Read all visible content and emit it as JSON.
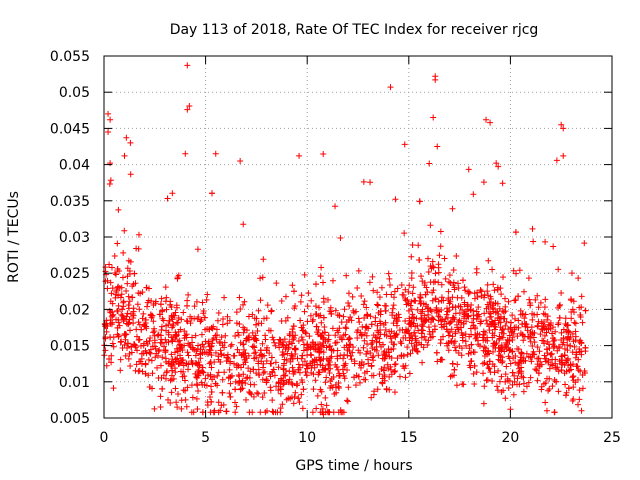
{
  "chart_data": {
    "type": "scatter",
    "title": "Day 113 of 2018, Rate Of TEC Index for receiver rjcg",
    "xlabel": "GPS time / hours",
    "ylabel": "ROTI / TECUs",
    "xlim": [
      0,
      25
    ],
    "ylim": [
      0.005,
      0.055
    ],
    "x_ticks": [
      {
        "value": 0,
        "label": "0"
      },
      {
        "value": 5,
        "label": "5"
      },
      {
        "value": 10,
        "label": "10"
      },
      {
        "value": 15,
        "label": "15"
      },
      {
        "value": 20,
        "label": "20"
      },
      {
        "value": 25,
        "label": "25"
      }
    ],
    "y_ticks": [
      {
        "value": 0.005,
        "label": "0.005"
      },
      {
        "value": 0.01,
        "label": "0.01"
      },
      {
        "value": 0.015,
        "label": "0.015"
      },
      {
        "value": 0.02,
        "label": "0.02"
      },
      {
        "value": 0.025,
        "label": "0.025"
      },
      {
        "value": 0.03,
        "label": "0.03"
      },
      {
        "value": 0.035,
        "label": "0.035"
      },
      {
        "value": 0.04,
        "label": "0.04"
      },
      {
        "value": 0.045,
        "label": "0.045"
      },
      {
        "value": 0.05,
        "label": "0.05"
      },
      {
        "value": 0.055,
        "label": "0.055"
      }
    ],
    "grid": true,
    "grid_style": "dotted",
    "marker": "plus",
    "series": [
      {
        "name": "ROTI",
        "color": "#ff0000",
        "x_range": [
          0,
          23.7
        ],
        "points_estimated_count": 2400,
        "trend": [
          {
            "hour": 0.0,
            "median": 0.019
          },
          {
            "hour": 1.0,
            "median": 0.02
          },
          {
            "hour": 2.0,
            "median": 0.017
          },
          {
            "hour": 3.0,
            "median": 0.015
          },
          {
            "hour": 4.0,
            "median": 0.0135
          },
          {
            "hour": 5.0,
            "median": 0.0135
          },
          {
            "hour": 6.0,
            "median": 0.013
          },
          {
            "hour": 7.0,
            "median": 0.0135
          },
          {
            "hour": 8.0,
            "median": 0.012
          },
          {
            "hour": 9.0,
            "median": 0.0125
          },
          {
            "hour": 10.0,
            "median": 0.0155
          },
          {
            "hour": 11.0,
            "median": 0.013
          },
          {
            "hour": 12.0,
            "median": 0.0145
          },
          {
            "hour": 13.0,
            "median": 0.0155
          },
          {
            "hour": 14.0,
            "median": 0.016
          },
          {
            "hour": 15.0,
            "median": 0.018
          },
          {
            "hour": 16.0,
            "median": 0.0205
          },
          {
            "hour": 17.0,
            "median": 0.019
          },
          {
            "hour": 18.0,
            "median": 0.0175
          },
          {
            "hour": 19.0,
            "median": 0.0165
          },
          {
            "hour": 20.0,
            "median": 0.016
          },
          {
            "hour": 21.0,
            "median": 0.0155
          },
          {
            "hour": 22.0,
            "median": 0.0145
          },
          {
            "hour": 23.0,
            "median": 0.014
          },
          {
            "hour": 23.7,
            "median": 0.0145
          }
        ],
        "notable_points": [
          {
            "x": 4.1,
            "y": 0.0537
          },
          {
            "x": 14.1,
            "y": 0.0507
          },
          {
            "x": 16.3,
            "y": 0.0522
          },
          {
            "x": 16.3,
            "y": 0.0517
          },
          {
            "x": 4.2,
            "y": 0.0481
          },
          {
            "x": 4.1,
            "y": 0.0476
          },
          {
            "x": 0.2,
            "y": 0.047
          },
          {
            "x": 0.3,
            "y": 0.0462
          },
          {
            "x": 18.8,
            "y": 0.0462
          },
          {
            "x": 19.0,
            "y": 0.0458
          },
          {
            "x": 22.5,
            "y": 0.0455
          },
          {
            "x": 22.6,
            "y": 0.045
          },
          {
            "x": 16.2,
            "y": 0.0465
          },
          {
            "x": 0.2,
            "y": 0.0445
          },
          {
            "x": 1.1,
            "y": 0.0437
          },
          {
            "x": 1.3,
            "y": 0.043
          },
          {
            "x": 14.8,
            "y": 0.0428
          },
          {
            "x": 16.4,
            "y": 0.0425
          },
          {
            "x": 4.0,
            "y": 0.0415
          },
          {
            "x": 5.5,
            "y": 0.0415
          },
          {
            "x": 9.6,
            "y": 0.0412
          },
          {
            "x": 22.6,
            "y": 0.0412
          },
          {
            "x": 6.7,
            "y": 0.0405
          },
          {
            "x": 0.3,
            "y": 0.0402
          },
          {
            "x": 19.3,
            "y": 0.0402
          },
          {
            "x": 10.8,
            "y": 0.0055
          },
          {
            "x": 21.8,
            "y": 0.006
          },
          {
            "x": 23.5,
            "y": 0.006
          },
          {
            "x": 20.0,
            "y": 0.0062
          },
          {
            "x": 3.6,
            "y": 0.0065
          }
        ]
      }
    ]
  }
}
